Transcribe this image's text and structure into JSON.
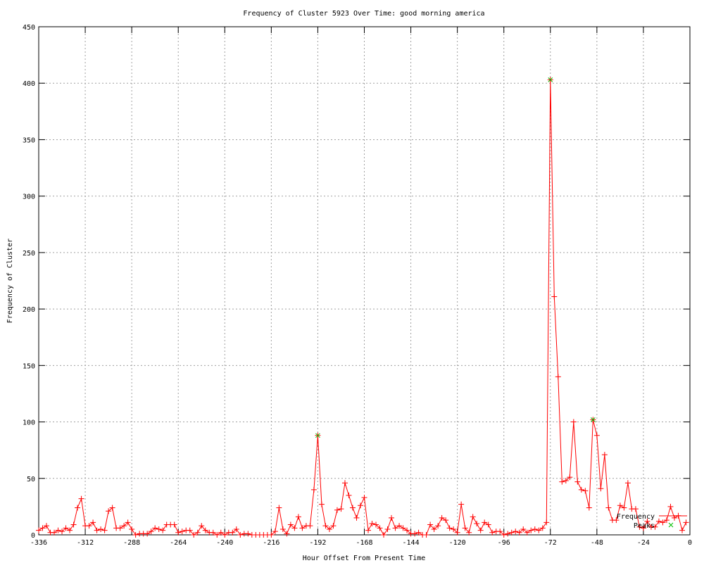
{
  "chart_data": {
    "type": "line",
    "title": "Frequency of Cluster 5923 Over Time: good morning america",
    "xlabel": "Hour Offset From Present Time",
    "ylabel": "Frequency of Cluster",
    "xlim": [
      -336,
      0
    ],
    "ylim": [
      0,
      450
    ],
    "xticks": [
      -336,
      -312,
      -288,
      -264,
      -240,
      -216,
      -192,
      -168,
      -144,
      -120,
      -96,
      -72,
      -48,
      -24,
      0
    ],
    "yticks": [
      0,
      50,
      100,
      150,
      200,
      250,
      300,
      350,
      400,
      450
    ],
    "grid": true,
    "legend_position": "bottom-right",
    "series": [
      {
        "name": "Frequency",
        "color": "#ff0000",
        "marker": "plus",
        "x_start": -336,
        "x_step": 2,
        "values": [
          4,
          6,
          8,
          2,
          2,
          4,
          3,
          6,
          4,
          9,
          24,
          32,
          8,
          8,
          11,
          4,
          5,
          4,
          21,
          24,
          6,
          6,
          8,
          11,
          5,
          0,
          1,
          1,
          1,
          3,
          6,
          5,
          4,
          9,
          9,
          9,
          2,
          3,
          4,
          4,
          0,
          2,
          8,
          4,
          2,
          2,
          0,
          2,
          0,
          2,
          2,
          5,
          0,
          1,
          1,
          0,
          0,
          0,
          0,
          0,
          0,
          3,
          24,
          5,
          1,
          9,
          6,
          16,
          6,
          8,
          8,
          40,
          88,
          27,
          8,
          5,
          8,
          22,
          23,
          46,
          35,
          24,
          15,
          26,
          33,
          4,
          10,
          9,
          6,
          0,
          5,
          15,
          6,
          8,
          6,
          4,
          1,
          1,
          2,
          0,
          0,
          9,
          5,
          8,
          15,
          13,
          6,
          5,
          2,
          27,
          6,
          2,
          16,
          10,
          4,
          11,
          9,
          2,
          3,
          3,
          0,
          1,
          2,
          3,
          2,
          5,
          2,
          4,
          5,
          4,
          6,
          11,
          403,
          211,
          140,
          47,
          48,
          51,
          100,
          47,
          40,
          39,
          24,
          102,
          88,
          41,
          71,
          24,
          13,
          13,
          26,
          24,
          46,
          23,
          23,
          7,
          6,
          12,
          7,
          7,
          12,
          11,
          13,
          25,
          15,
          17,
          4,
          11
        ]
      },
      {
        "name": "Peaks",
        "color": "#00c000",
        "marker": "cross",
        "points": [
          [
            -192,
            88
          ],
          [
            -72,
            403
          ],
          [
            -50,
            102
          ]
        ]
      }
    ]
  }
}
